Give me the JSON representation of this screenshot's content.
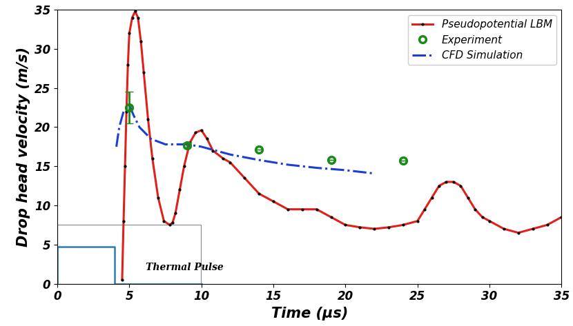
{
  "chart_data": {
    "type": "line",
    "x_label": "Time (µs)",
    "y_label": "Drop head velocity (m/s)",
    "xlim": [
      0,
      35
    ],
    "xticks": [
      0,
      5,
      10,
      15,
      20,
      25,
      30,
      35
    ],
    "ylim": [
      0,
      35
    ],
    "yticks": [
      0,
      5,
      10,
      15,
      20,
      25,
      30,
      35
    ],
    "legend": "upper right",
    "series": [
      {
        "name": "Pseudopotential LBM",
        "type": "line",
        "color": "#e0201b",
        "marker": "point",
        "line_style": "solid",
        "x": [
          4.5,
          4.6,
          4.7,
          4.8,
          4.9,
          5.0,
          5.2,
          5.4,
          5.6,
          5.8,
          6.0,
          6.3,
          6.6,
          7.0,
          7.4,
          7.8,
          8.0,
          8.2,
          8.5,
          8.8,
          9.2,
          9.6,
          10.0,
          10.4,
          10.8,
          11.5,
          12,
          13,
          14,
          15,
          16,
          17,
          18,
          19,
          20,
          21,
          22,
          23,
          24,
          25,
          25.5,
          26,
          26.5,
          27,
          27.5,
          28,
          28.5,
          29,
          29.5,
          30,
          31,
          32,
          33,
          34,
          35
        ],
        "values": [
          0.5,
          8,
          15,
          22,
          28,
          32,
          34,
          34.8,
          34,
          31,
          27,
          21,
          16,
          11,
          8,
          7.5,
          7.8,
          9,
          12,
          15,
          18,
          19.3,
          19.6,
          18.5,
          17,
          16,
          15.5,
          13.5,
          11.5,
          10.5,
          9.5,
          9.5,
          9.5,
          8.5,
          7.5,
          7.2,
          7.0,
          7.2,
          7.5,
          8,
          9.5,
          11,
          12.5,
          13,
          13,
          12.5,
          11,
          9.5,
          8.5,
          8,
          7,
          6.5,
          7,
          7.5,
          8.5
        ]
      },
      {
        "name": "Experiment",
        "type": "scatter",
        "color": "#1a8a1a",
        "marker": "circle",
        "x": [
          5,
          9,
          14,
          19,
          24
        ],
        "values": [
          22.5,
          17.7,
          17.1,
          15.8,
          15.7
        ],
        "errors": [
          2.0,
          0.3,
          0,
          0,
          0
        ]
      },
      {
        "name": "CFD Simulation",
        "type": "line",
        "color": "#1a3fd6",
        "line_style": "dashdot",
        "x": [
          4.1,
          4.3,
          4.6,
          5.0,
          5.3,
          5.7,
          6.5,
          7.5,
          9,
          10,
          12,
          14,
          16,
          18,
          20,
          21.9
        ],
        "values": [
          17.5,
          20,
          22,
          22.8,
          21.5,
          20,
          18.5,
          17.8,
          17.8,
          17.5,
          16.5,
          15.8,
          15.2,
          14.8,
          14.5,
          14.1
        ]
      }
    ],
    "pulse": {
      "label": "Thermal Pulse",
      "color": "#2a7ab8",
      "x": [
        0,
        0,
        4,
        4,
        10
      ],
      "values": [
        0,
        4.7,
        4.7,
        0,
        0
      ]
    }
  }
}
